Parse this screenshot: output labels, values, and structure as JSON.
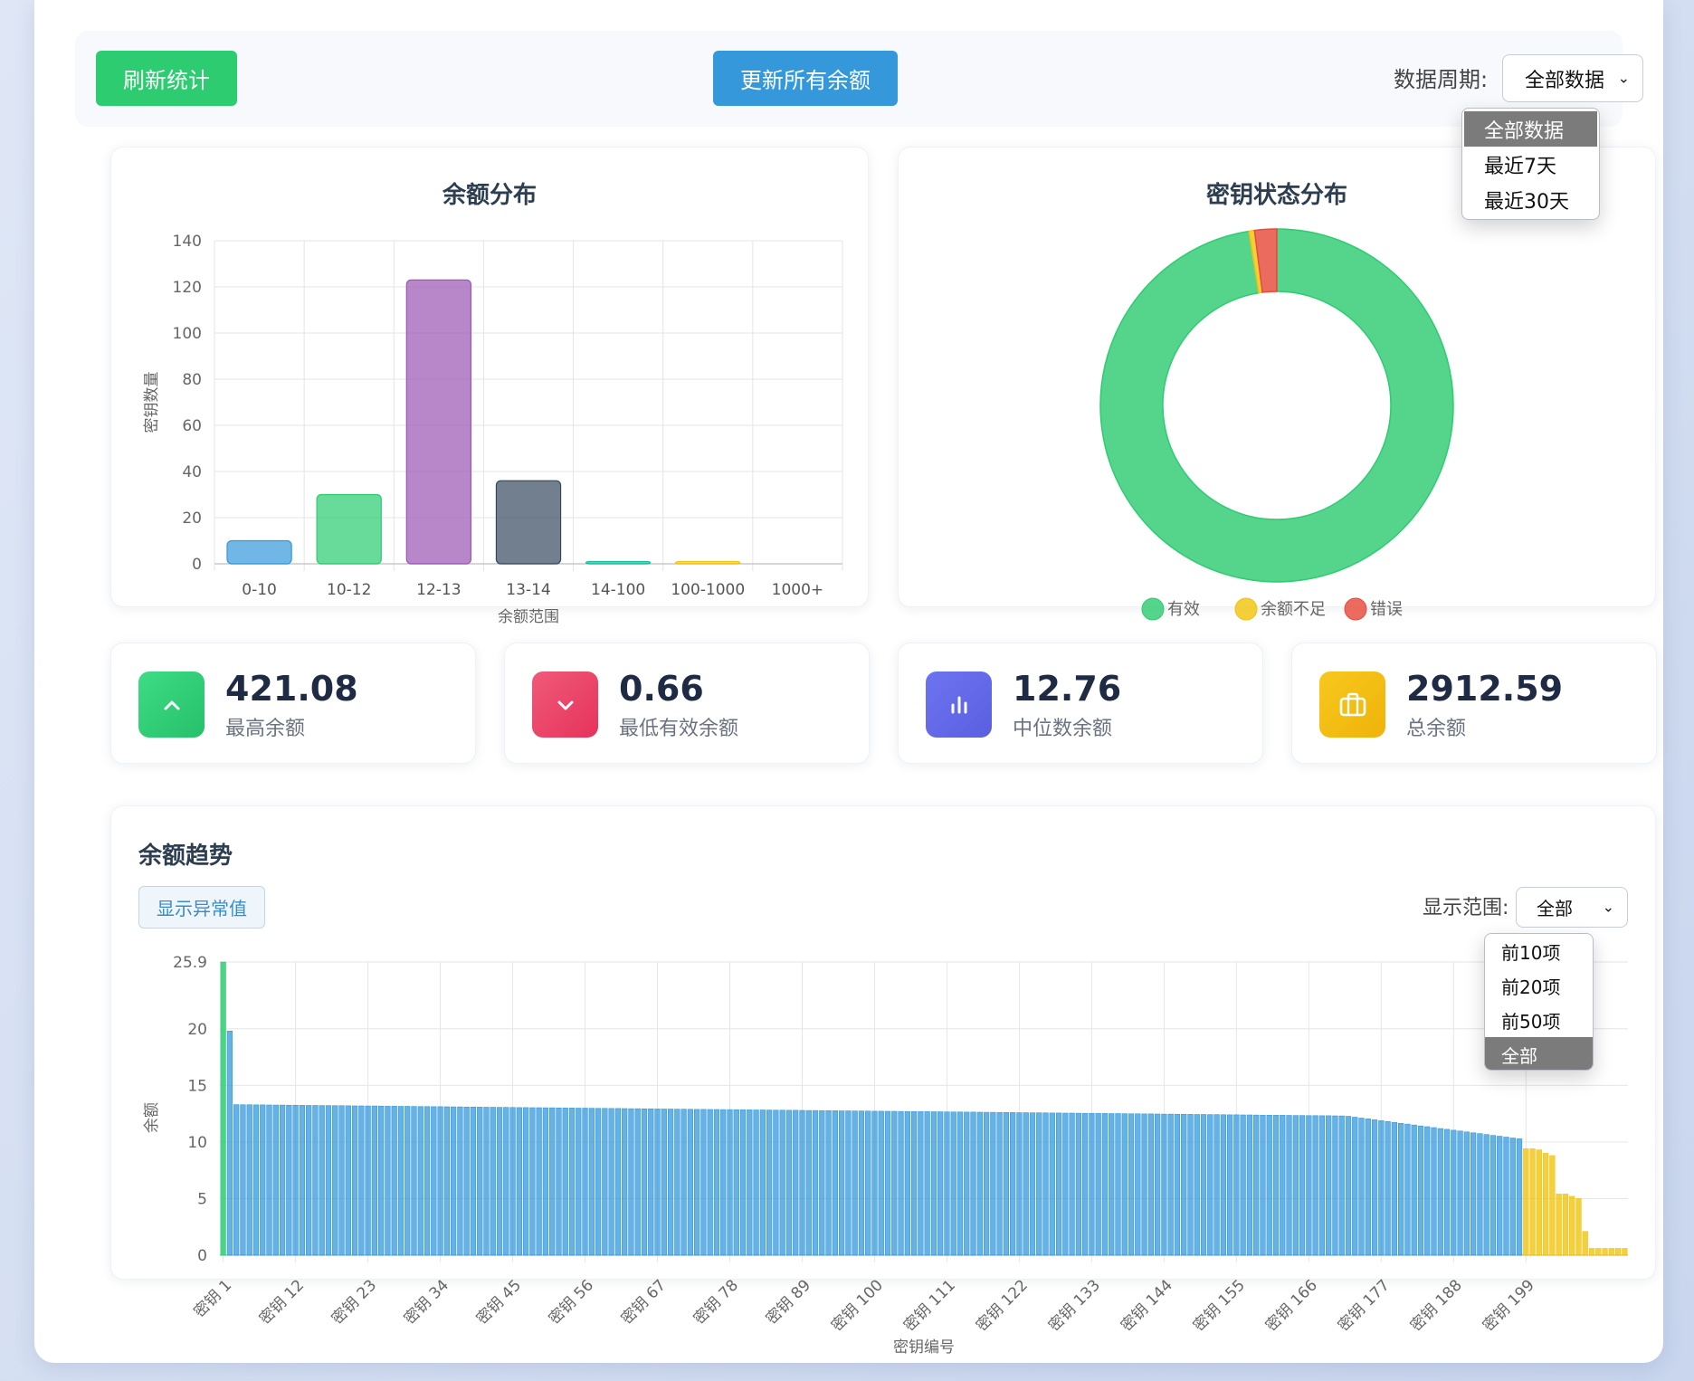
{
  "toolbar": {
    "refresh_label": "刷新统计",
    "update_label": "更新所有余额",
    "period_label": "数据周期:",
    "period_selected": "全部数据",
    "period_options": [
      "全部数据",
      "最近7天",
      "最近30天"
    ]
  },
  "balance_chart": {
    "title": "余额分布"
  },
  "status_chart": {
    "title": "密钥状态分布"
  },
  "stats": [
    {
      "value": "421.08",
      "label": "最高余额",
      "icon": "chevron-up-icon"
    },
    {
      "value": "0.66",
      "label": "最低有效余额",
      "icon": "chevron-down-icon"
    },
    {
      "value": "12.76",
      "label": "中位数余额",
      "icon": "bar-chart-icon"
    },
    {
      "value": "2912.59",
      "label": "总余额",
      "icon": "briefcase-icon"
    }
  ],
  "trend": {
    "title": "余额趋势",
    "outlier_label": "显示异常值",
    "range_label": "显示范围:",
    "range_selected": "全部",
    "range_options": [
      "前10项",
      "前20项",
      "前50项",
      "全部"
    ]
  },
  "colors": {
    "green": "#2ecc71",
    "blue": "#3498db",
    "purple": "#9b59b6",
    "slate": "#34495e",
    "yellow": "#f1c40f",
    "red": "#e74c3c"
  },
  "chart_data": [
    {
      "type": "bar",
      "title": "余额分布",
      "xlabel": "余额范围",
      "ylabel": "密钥数量",
      "categories": [
        "0-10",
        "10-12",
        "12-13",
        "13-14",
        "14-100",
        "100-1000",
        "1000+"
      ],
      "values": [
        10,
        30,
        123,
        36,
        1,
        1,
        0
      ],
      "ylim": [
        0,
        140
      ],
      "yticks": [
        0,
        20,
        40,
        60,
        80,
        100,
        120,
        140
      ],
      "grid": true
    },
    {
      "type": "pie",
      "title": "密钥状态分布",
      "labels": [
        "有效",
        "余额不足",
        "错误"
      ],
      "values": [
        193,
        1,
        4
      ],
      "legend": "bottom",
      "donut": true
    },
    {
      "type": "bar",
      "title": "余额趋势",
      "xlabel": "密钥编号",
      "ylabel": "余额",
      "ylim": [
        0,
        25.9
      ],
      "yticks": [
        0,
        5,
        10,
        15,
        20,
        25.9
      ],
      "xtick_labels": [
        "密钥 1",
        "密钥 12",
        "密钥 23",
        "密钥 34",
        "密钥 45",
        "密钥 56",
        "密钥 67",
        "密钥 78",
        "密钥 89",
        "密钥 100",
        "密钥 111",
        "密钥 122",
        "密钥 133",
        "密钥 144",
        "密钥 155",
        "密钥 166",
        "密钥 177",
        "密钥 188",
        "密钥 199"
      ],
      "count": 214,
      "values_summary": {
        "first": 25.9,
        "second": 19.8,
        "plateau_start": 13.3,
        "plateau_end": 12.3,
        "decline_end": 10.2,
        "tail": [
          9.4,
          9.4,
          9.3,
          9.0,
          8.8,
          5.4,
          5.4,
          5.2,
          5.0,
          2.1,
          0.6
        ]
      },
      "grid": true
    }
  ]
}
